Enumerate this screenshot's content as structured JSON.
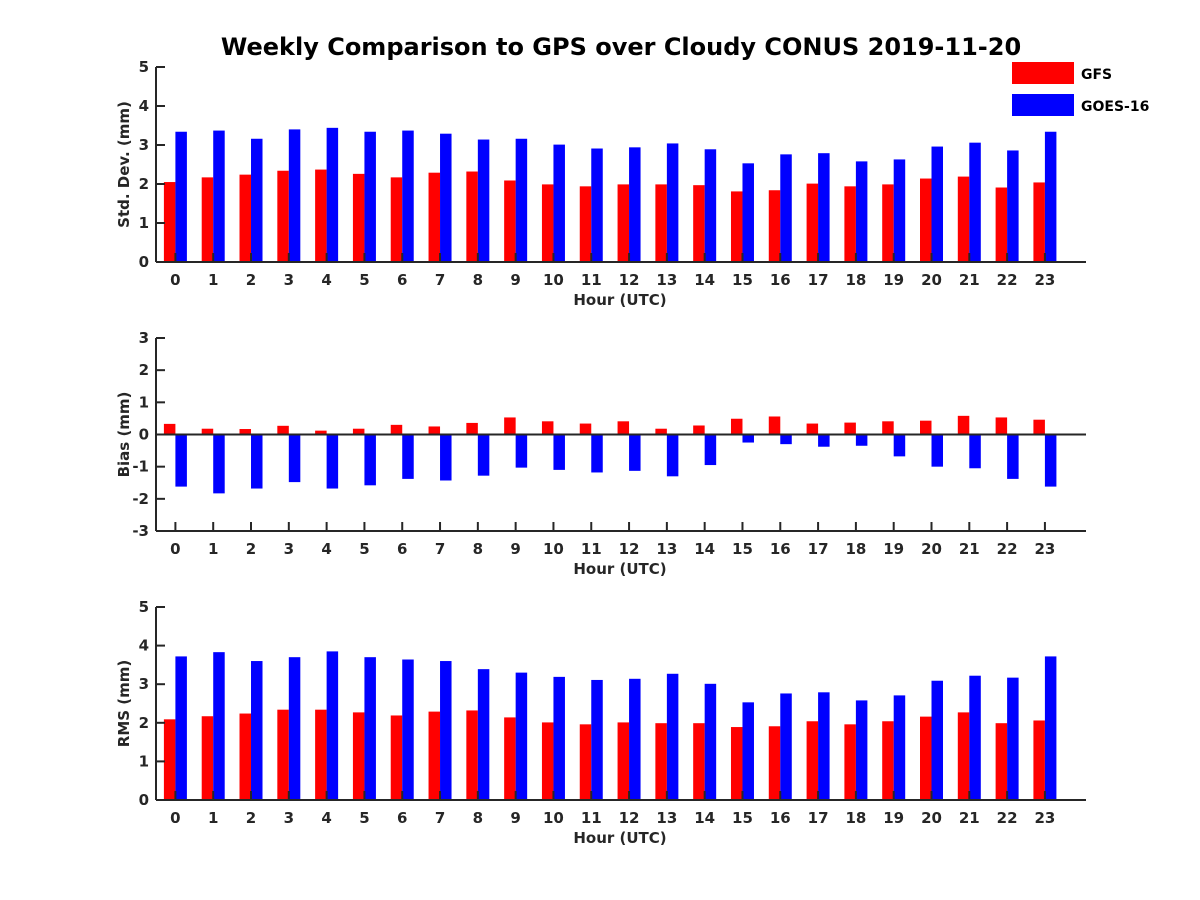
{
  "title": "Weekly Comparison to GPS over Cloudy CONUS 2019-11-20",
  "legend": {
    "placement": "top-right",
    "entries": [
      {
        "label": "GFS",
        "color": "#ff0000"
      },
      {
        "label": "GOES-16",
        "color": "#0000ff"
      }
    ]
  },
  "chart_data": [
    {
      "type": "bar",
      "xlabel": "Hour (UTC)",
      "ylabel": "Std. Dev. (mm)",
      "ylim": [
        0,
        5
      ],
      "yticks": [
        "0",
        "1",
        "2",
        "3",
        "4",
        "5"
      ],
      "categories": [
        "0",
        "1",
        "2",
        "3",
        "4",
        "5",
        "6",
        "7",
        "8",
        "9",
        "10",
        "11",
        "12",
        "13",
        "14",
        "15",
        "16",
        "17",
        "18",
        "19",
        "20",
        "21",
        "22",
        "23"
      ],
      "series": [
        {
          "name": "GFS",
          "color": "#ff0000",
          "values": [
            2.05,
            2.17,
            2.24,
            2.34,
            2.37,
            2.26,
            2.17,
            2.29,
            2.32,
            2.09,
            1.99,
            1.94,
            1.99,
            1.99,
            1.97,
            1.81,
            1.84,
            2.01,
            1.94,
            1.99,
            2.14,
            2.19,
            1.91,
            2.04
          ]
        },
        {
          "name": "GOES-16",
          "color": "#0000ff",
          "values": [
            3.34,
            3.37,
            3.16,
            3.4,
            3.44,
            3.34,
            3.37,
            3.29,
            3.14,
            3.16,
            3.01,
            2.91,
            2.94,
            3.04,
            2.89,
            2.53,
            2.76,
            2.79,
            2.58,
            2.63,
            2.96,
            3.06,
            2.86,
            3.34
          ]
        }
      ]
    },
    {
      "type": "bar",
      "xlabel": "Hour (UTC)",
      "ylabel": "Bias (mm)",
      "ylim": [
        -3,
        3
      ],
      "yticks": [
        "-3",
        "-2",
        "-1",
        "0",
        "1",
        "2",
        "3"
      ],
      "categories": [
        "0",
        "1",
        "2",
        "3",
        "4",
        "5",
        "6",
        "7",
        "8",
        "9",
        "10",
        "11",
        "12",
        "13",
        "14",
        "15",
        "16",
        "17",
        "18",
        "19",
        "20",
        "21",
        "22",
        "23"
      ],
      "series": [
        {
          "name": "GFS",
          "color": "#ff0000",
          "values": [
            0.33,
            0.18,
            0.17,
            0.27,
            0.12,
            0.18,
            0.3,
            0.25,
            0.36,
            0.53,
            0.41,
            0.34,
            0.41,
            0.18,
            0.28,
            0.49,
            0.56,
            0.34,
            0.37,
            0.41,
            0.43,
            0.58,
            0.53,
            0.46
          ]
        },
        {
          "name": "GOES-16",
          "color": "#0000ff",
          "values": [
            -1.62,
            -1.83,
            -1.68,
            -1.48,
            -1.68,
            -1.58,
            -1.38,
            -1.43,
            -1.28,
            -1.03,
            -1.1,
            -1.18,
            -1.13,
            -1.3,
            -0.95,
            -0.25,
            -0.3,
            -0.38,
            -0.35,
            -0.68,
            -1.0,
            -1.05,
            -1.38,
            -1.62
          ]
        }
      ]
    },
    {
      "type": "bar",
      "xlabel": "Hour (UTC)",
      "ylabel": "RMS (mm)",
      "ylim": [
        0,
        5
      ],
      "yticks": [
        "0",
        "1",
        "2",
        "3",
        "4",
        "5"
      ],
      "categories": [
        "0",
        "1",
        "2",
        "3",
        "4",
        "5",
        "6",
        "7",
        "8",
        "9",
        "10",
        "11",
        "12",
        "13",
        "14",
        "15",
        "16",
        "17",
        "18",
        "19",
        "20",
        "21",
        "22",
        "23"
      ],
      "series": [
        {
          "name": "GFS",
          "color": "#ff0000",
          "values": [
            2.09,
            2.17,
            2.24,
            2.34,
            2.34,
            2.27,
            2.19,
            2.29,
            2.32,
            2.14,
            2.01,
            1.96,
            2.01,
            1.99,
            1.99,
            1.89,
            1.91,
            2.04,
            1.96,
            2.04,
            2.16,
            2.27,
            1.99,
            2.06
          ]
        },
        {
          "name": "GOES-16",
          "color": "#0000ff",
          "values": [
            3.72,
            3.83,
            3.6,
            3.7,
            3.85,
            3.7,
            3.64,
            3.6,
            3.39,
            3.3,
            3.19,
            3.11,
            3.14,
            3.27,
            3.01,
            2.53,
            2.76,
            2.79,
            2.58,
            2.71,
            3.09,
            3.22,
            3.17,
            3.72
          ]
        }
      ]
    }
  ]
}
